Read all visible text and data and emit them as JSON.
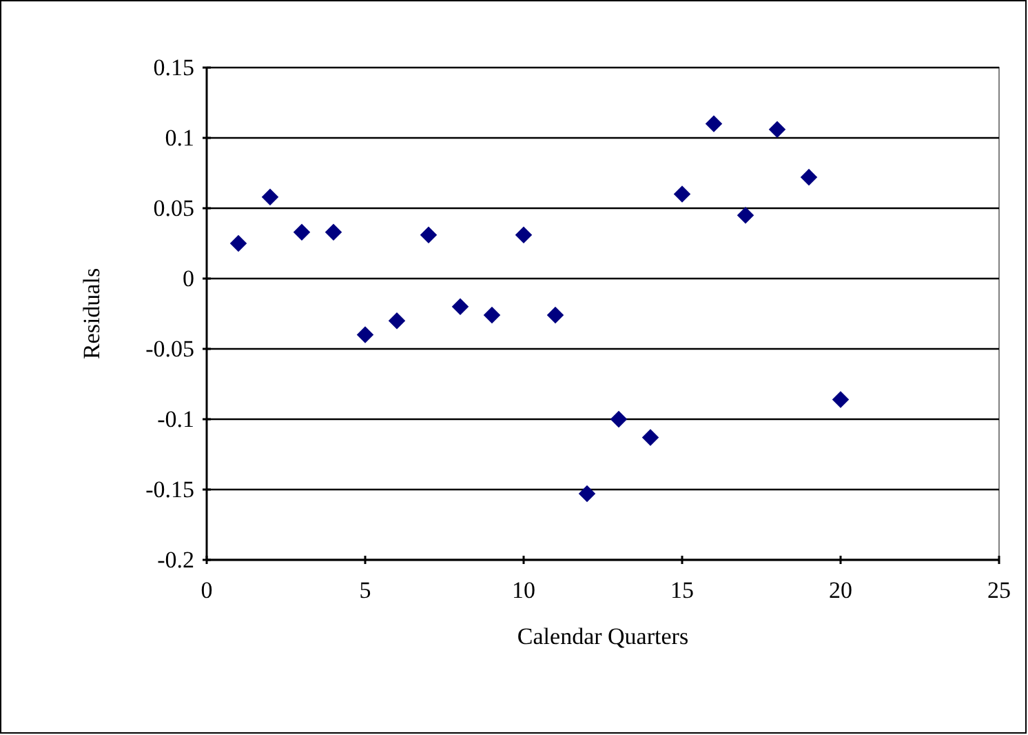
{
  "chart_data": {
    "type": "scatter",
    "xlabel": "Calendar Quarters",
    "ylabel": "Residuals",
    "x": [
      1,
      2,
      3,
      4,
      5,
      6,
      7,
      8,
      9,
      10,
      11,
      12,
      13,
      14,
      15,
      16,
      17,
      18,
      19,
      20
    ],
    "series": [
      {
        "color": "#000080",
        "values": [
          0.025,
          0.058,
          0.033,
          0.033,
          -0.04,
          -0.03,
          0.031,
          -0.02,
          -0.026,
          0.031,
          -0.026,
          -0.153,
          -0.1,
          -0.113,
          0.06,
          0.11,
          0.045,
          0.106,
          0.072,
          -0.086
        ]
      }
    ],
    "xlim": [
      0,
      25
    ],
    "xticks": [
      0,
      5,
      10,
      15,
      20,
      25
    ],
    "ylim": [
      -0.2,
      0.15
    ],
    "yticks": [
      -0.2,
      -0.15,
      -0.1,
      -0.05,
      0,
      0.05,
      0.1,
      0.15
    ],
    "grid": "y",
    "marker": "diamond"
  }
}
